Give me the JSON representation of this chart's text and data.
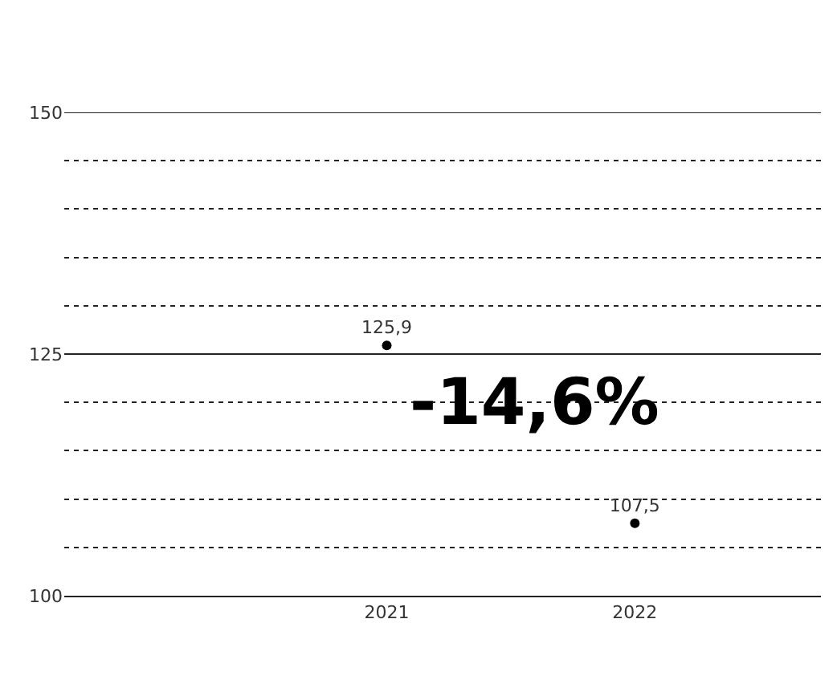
{
  "chart_data": {
    "type": "scatter",
    "categories": [
      "2021",
      "2022"
    ],
    "series": [
      {
        "color": "#000000",
        "values": [
          125.9,
          107.5
        ],
        "value_labels": [
          "125,9",
          "107,5"
        ]
      }
    ],
    "ylim": [
      100,
      150
    ],
    "yticks": [
      100,
      {
        "value": 105,
        "label": null
      },
      {
        "value": 110,
        "label": null
      },
      {
        "value": 115,
        "label": null
      },
      {
        "value": 120,
        "label": null
      },
      125,
      {
        "value": 130,
        "label": null
      },
      {
        "value": 135,
        "label": null
      },
      {
        "value": 140,
        "label": null
      },
      {
        "value": 145,
        "label": null
      },
      150
    ],
    "grid": "y",
    "ref_lines": [
      {
        "axis": "y",
        "value": 150,
        "color": "#222222",
        "line_style": "solid"
      },
      {
        "axis": "y",
        "value": 125,
        "color": "#222222",
        "line_style": "solid"
      }
    ],
    "marker": "circle",
    "annotations": [
      "-14,6%"
    ]
  }
}
